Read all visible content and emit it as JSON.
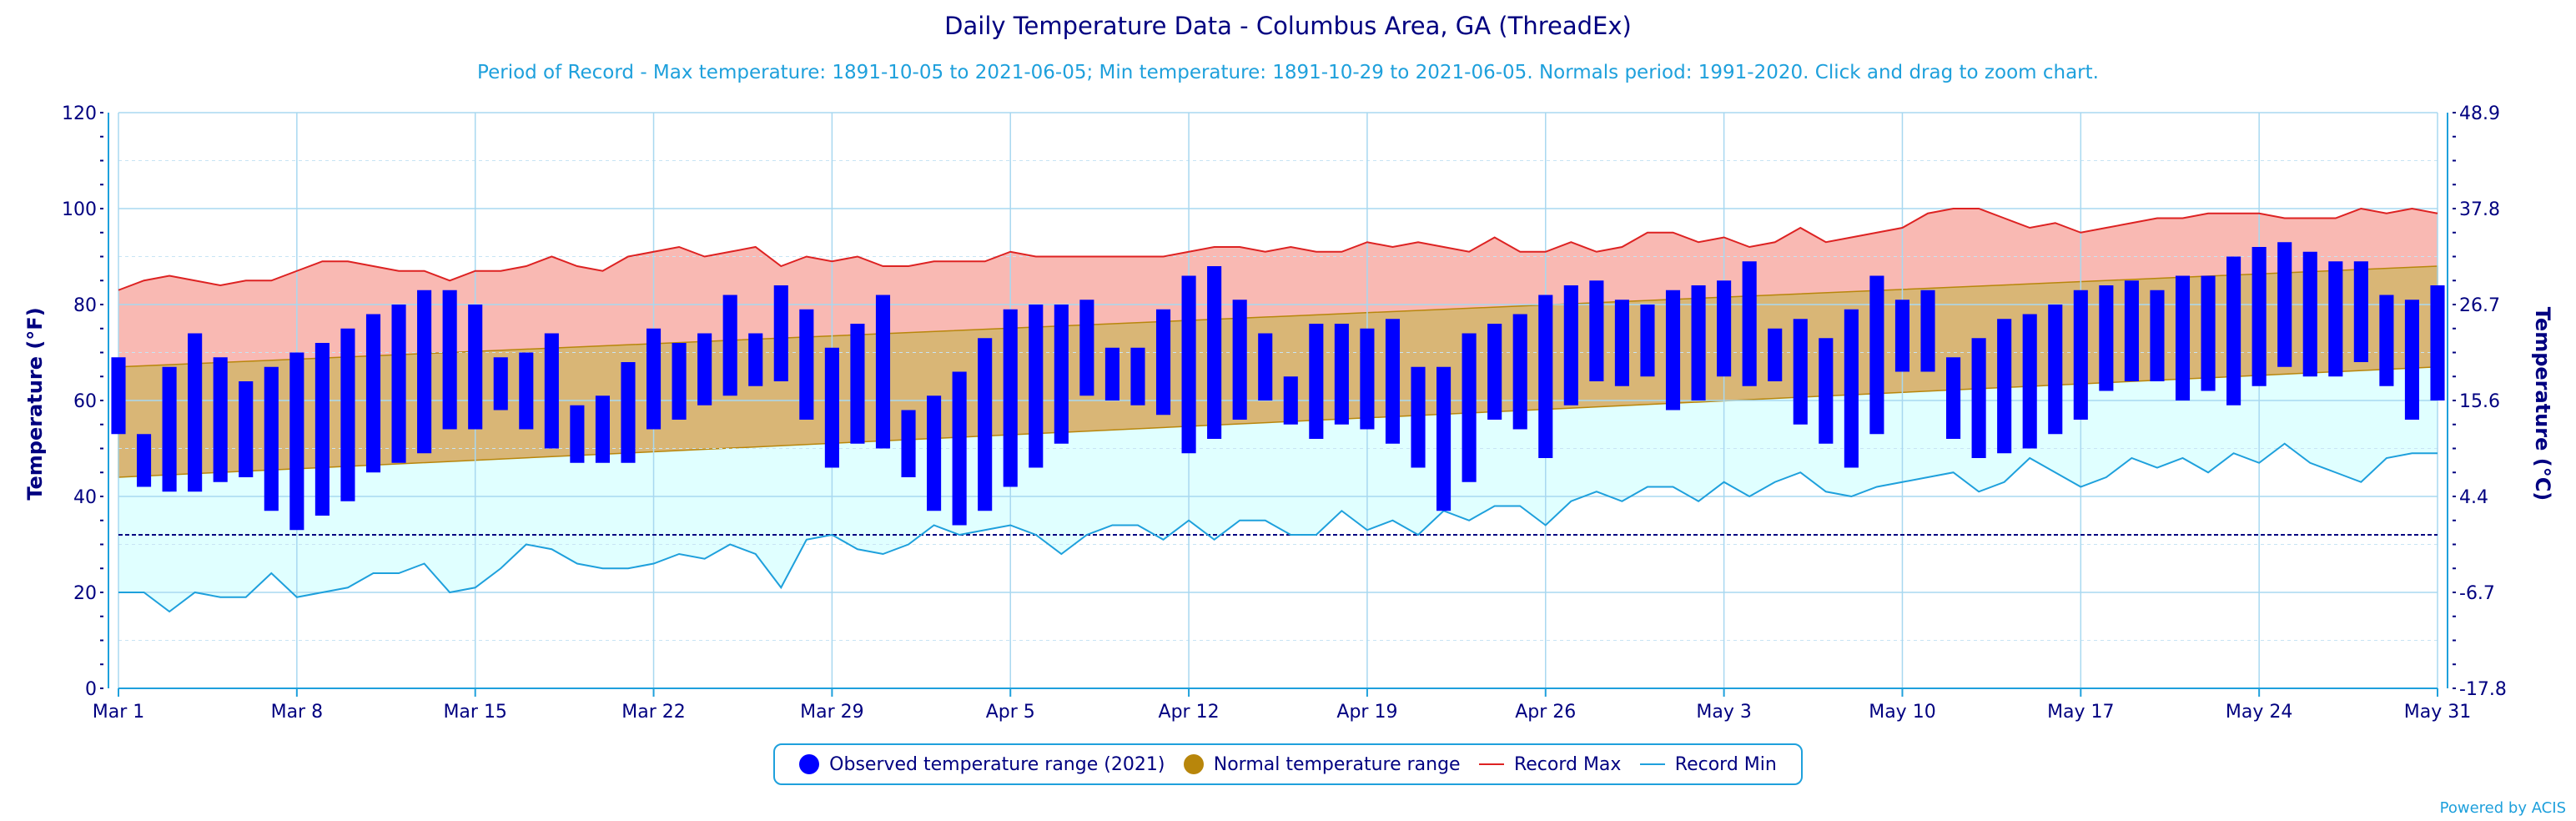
{
  "chart_data": {
    "type": "bar",
    "title": "Daily Temperature Data - Columbus Area, GA (ThreadEx)",
    "subtitle": "Period of Record - Max temperature: 1891-10-05 to 2021-06-05; Min temperature: 1891-10-29 to 2021-06-05. Normals period: 1991-2020. Click and drag to zoom chart.",
    "ylabel": "Temperature (°F)",
    "y2label": "Temperature (°C)",
    "ylim": [
      0,
      120
    ],
    "yticks": [
      "0",
      "20",
      "40",
      "60",
      "80",
      "100",
      "120"
    ],
    "y2ticks": [
      "-17.8",
      "-6.7",
      "4.4",
      "15.6",
      "26.7",
      "37.8",
      "48.9"
    ],
    "xtick_labels": [
      "Mar 1",
      "Mar 8",
      "Mar 15",
      "Mar 22",
      "Mar 29",
      "Apr 5",
      "Apr 12",
      "Apr 19",
      "Apr 26",
      "May 3",
      "May 10",
      "May 17",
      "May 24",
      "May 31"
    ],
    "xtick_day_index": [
      0,
      7,
      14,
      21,
      28,
      35,
      42,
      49,
      56,
      63,
      70,
      77,
      84,
      91
    ],
    "freezing_line": 32,
    "grid": true,
    "legend_position": "bottom-center",
    "series": [
      {
        "name": "Observed temperature range (2021)",
        "color": "#0000ff",
        "low": [
          53,
          42,
          41,
          41,
          43,
          44,
          37,
          33,
          36,
          39,
          45,
          47,
          49,
          54,
          54,
          58,
          54,
          50,
          47,
          47,
          47,
          54,
          56,
          59,
          61,
          63,
          64,
          56,
          46,
          51,
          50,
          44,
          37,
          34,
          37,
          42,
          46,
          51,
          61,
          60,
          59,
          57,
          49,
          52,
          56,
          60,
          55,
          52,
          55,
          54,
          51,
          46,
          37,
          43,
          56,
          54,
          48,
          59,
          64,
          63,
          65,
          58,
          60,
          65,
          63,
          64,
          55,
          51,
          46,
          53,
          66,
          66,
          52,
          48,
          49,
          50,
          53,
          56,
          62,
          64,
          64,
          60,
          62,
          59,
          63,
          67,
          65,
          65,
          68,
          63,
          56,
          60
        ],
        "high": [
          69,
          53,
          67,
          74,
          69,
          64,
          67,
          70,
          72,
          75,
          78,
          80,
          83,
          83,
          80,
          69,
          70,
          74,
          59,
          61,
          68,
          75,
          72,
          74,
          82,
          74,
          84,
          79,
          71,
          76,
          82,
          58,
          61,
          66,
          73,
          79,
          80,
          80,
          81,
          71,
          71,
          79,
          86,
          88,
          81,
          74,
          65,
          76,
          76,
          75,
          77,
          67,
          67,
          74,
          76,
          78,
          82,
          84,
          85,
          81,
          80,
          83,
          84,
          85,
          89,
          75,
          77,
          73,
          79,
          86,
          81,
          83,
          69,
          73,
          77,
          78,
          80,
          83,
          84,
          85,
          83,
          86,
          86,
          90,
          92,
          93,
          91,
          89,
          89,
          82,
          81,
          84
        ]
      },
      {
        "name": "Normal temperature range",
        "color": "#b8860b",
        "low_start": 44,
        "low_end": 67,
        "high_start": 67,
        "high_end": 88
      },
      {
        "name": "Record Max",
        "color": "#dd2222",
        "values": [
          83,
          85,
          86,
          85,
          84,
          85,
          85,
          87,
          89,
          89,
          88,
          87,
          87,
          85,
          87,
          87,
          88,
          90,
          88,
          87,
          90,
          91,
          92,
          90,
          91,
          92,
          88,
          90,
          89,
          90,
          88,
          88,
          89,
          89,
          89,
          91,
          90,
          90,
          90,
          90,
          90,
          90,
          91,
          92,
          92,
          91,
          92,
          91,
          91,
          93,
          92,
          93,
          92,
          91,
          94,
          91,
          91,
          93,
          91,
          92,
          95,
          95,
          93,
          94,
          92,
          93,
          96,
          93,
          94,
          95,
          96,
          99,
          100,
          100,
          98,
          96,
          97,
          95,
          96,
          97,
          98,
          98,
          99,
          99,
          99,
          98,
          98,
          98,
          100,
          99,
          100,
          99
        ]
      },
      {
        "name": "Record Min",
        "color": "#1ea0dc",
        "values": [
          20,
          20,
          16,
          20,
          19,
          19,
          24,
          19,
          20,
          21,
          24,
          24,
          26,
          20,
          21,
          25,
          30,
          29,
          26,
          25,
          25,
          26,
          28,
          27,
          30,
          28,
          21,
          31,
          32,
          29,
          28,
          30,
          34,
          32,
          33,
          34,
          32,
          28,
          32,
          34,
          34,
          31,
          35,
          31,
          35,
          35,
          32,
          32,
          37,
          33,
          35,
          32,
          37,
          35,
          38,
          38,
          34,
          39,
          41,
          39,
          42,
          42,
          39,
          43,
          40,
          43,
          45,
          41,
          40,
          42,
          43,
          44,
          45,
          41,
          43,
          48,
          45,
          42,
          44,
          48,
          46,
          48,
          45,
          49,
          47,
          51,
          47,
          45,
          43,
          48,
          49,
          49
        ]
      }
    ]
  },
  "legend": {
    "observed": "Observed temperature range (2021)",
    "normal": "Normal temperature range",
    "record_max": "Record Max",
    "record_min": "Record Min"
  },
  "credit": "Powered by ACIS"
}
